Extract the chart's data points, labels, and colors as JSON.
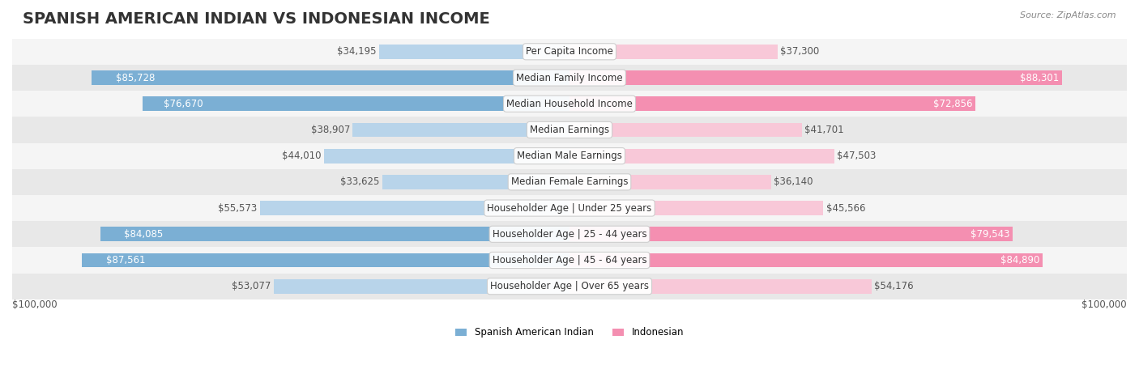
{
  "title": "SPANISH AMERICAN INDIAN VS INDONESIAN INCOME",
  "source": "Source: ZipAtlas.com",
  "categories": [
    "Per Capita Income",
    "Median Family Income",
    "Median Household Income",
    "Median Earnings",
    "Median Male Earnings",
    "Median Female Earnings",
    "Householder Age | Under 25 years",
    "Householder Age | 25 - 44 years",
    "Householder Age | 45 - 64 years",
    "Householder Age | Over 65 years"
  ],
  "left_values": [
    34195,
    85728,
    76670,
    38907,
    44010,
    33625,
    55573,
    84085,
    87561,
    53077
  ],
  "right_values": [
    37300,
    88301,
    72856,
    41701,
    47503,
    36140,
    45566,
    79543,
    84890,
    54176
  ],
  "left_labels": [
    "$34,195",
    "$85,728",
    "$76,670",
    "$38,907",
    "$44,010",
    "$33,625",
    "$55,573",
    "$84,085",
    "$87,561",
    "$53,077"
  ],
  "right_labels": [
    "$37,300",
    "$88,301",
    "$72,856",
    "$41,701",
    "$47,503",
    "$36,140",
    "$45,566",
    "$79,543",
    "$84,890",
    "$54,176"
  ],
  "max_value": 100000,
  "left_color_dark": "#7bafd4",
  "left_color_light": "#b8d4ea",
  "right_color_dark": "#f48fb1",
  "right_color_light": "#f8c8d8",
  "bar_bg_color": "#e8e8e8",
  "row_bg_colors": [
    "#f5f5f5",
    "#e8e8e8"
  ],
  "legend_left": "Spanish American Indian",
  "legend_right": "Indonesian",
  "xlabel_left": "$100,000",
  "xlabel_right": "$100,000",
  "title_fontsize": 14,
  "label_fontsize": 8.5,
  "cat_fontsize": 8.5,
  "threshold_dark": 60000
}
